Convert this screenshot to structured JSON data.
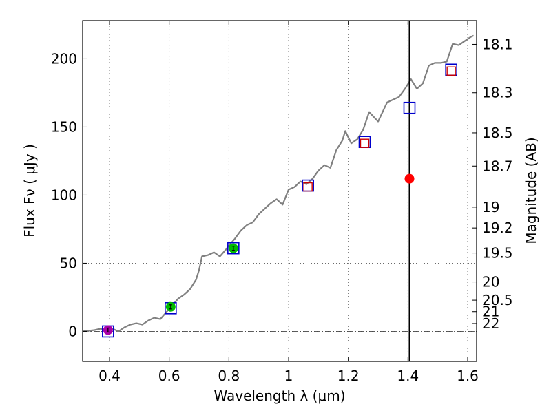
{
  "chart_data": {
    "type": "scatter",
    "xlabel": "Wavelength  λ (μm)",
    "ylabel": "Flux  Fν  ( μJy )",
    "y2label": "Magnitude (AB)",
    "xlim": [
      0.31,
      1.63
    ],
    "ylim": [
      -22,
      228
    ],
    "grid": true,
    "xticks": [
      {
        "value": 0.4,
        "label": "0.4"
      },
      {
        "value": 0.6,
        "label": "0.6"
      },
      {
        "value": 0.8,
        "label": "0.8"
      },
      {
        "value": 1.0,
        "label": "1"
      },
      {
        "value": 1.2,
        "label": "1.2"
      },
      {
        "value": 1.4,
        "label": "1.4"
      },
      {
        "value": 1.6,
        "label": "1.6"
      }
    ],
    "yticks": [
      {
        "value": 0,
        "label": "0"
      },
      {
        "value": 50,
        "label": "50"
      },
      {
        "value": 100,
        "label": "100"
      },
      {
        "value": 150,
        "label": "150"
      },
      {
        "value": 200,
        "label": "200"
      }
    ],
    "magnitude_ticks": [
      {
        "label": "18.1",
        "flux": 210.6
      },
      {
        "label": "18.3",
        "flux": 175.1
      },
      {
        "label": "18.5",
        "flux": 145.7
      },
      {
        "label": "18.7",
        "flux": 121.3
      },
      {
        "label": "19",
        "flux": 91.2
      },
      {
        "label": "19.2",
        "flux": 75.9
      },
      {
        "label": "19.5",
        "flux": 57.5
      },
      {
        "label": "20",
        "flux": 36.3
      },
      {
        "label": "20.5",
        "flux": 22.9
      },
      {
        "label": "21",
        "flux": 14.5
      },
      {
        "label": "22",
        "flux": 5.8
      }
    ],
    "series": [
      {
        "name": "template_spectrum",
        "style": "line",
        "color": "#808080",
        "x": [
          0.31,
          0.35,
          0.37,
          0.39,
          0.41,
          0.43,
          0.45,
          0.47,
          0.49,
          0.51,
          0.53,
          0.55,
          0.57,
          0.59,
          0.61,
          0.63,
          0.65,
          0.67,
          0.69,
          0.7,
          0.71,
          0.73,
          0.75,
          0.77,
          0.79,
          0.8,
          0.82,
          0.84,
          0.86,
          0.88,
          0.9,
          0.92,
          0.94,
          0.96,
          0.98,
          1.0,
          1.02,
          1.04,
          1.06,
          1.08,
          1.1,
          1.12,
          1.14,
          1.16,
          1.18,
          1.19,
          1.21,
          1.23,
          1.25,
          1.27,
          1.3,
          1.33,
          1.35,
          1.37,
          1.39,
          1.41,
          1.43,
          1.45,
          1.47,
          1.49,
          1.51,
          1.53,
          1.55,
          1.57,
          1.59,
          1.61,
          1.62
        ],
        "y": [
          0,
          1,
          2,
          1,
          2,
          0,
          3,
          5,
          6,
          5,
          8,
          10,
          9,
          14,
          19,
          24,
          27,
          31,
          38,
          45,
          55,
          56,
          58,
          55,
          60,
          63,
          68,
          74,
          78,
          80,
          86,
          90,
          94,
          97,
          93,
          104,
          106,
          110,
          108,
          112,
          118,
          122,
          120,
          133,
          140,
          147,
          138,
          141,
          148,
          161,
          154,
          168,
          170,
          172,
          178,
          185,
          178,
          182,
          195,
          197,
          197,
          198,
          211,
          210,
          213,
          216,
          217
        ]
      },
      {
        "name": "model_fluxes",
        "style": "open-square",
        "color": "#0000cc",
        "x": [
          0.395,
          0.605,
          0.815,
          1.065,
          1.255,
          1.405,
          1.545
        ],
        "y": [
          0,
          17,
          61,
          107,
          139,
          164,
          192
        ]
      },
      {
        "name": "observed_upper_limits",
        "style": "open-square-small",
        "color": "#cc0000",
        "x": [
          1.065,
          1.255,
          1.545
        ],
        "y": [
          106,
          138,
          191
        ]
      },
      {
        "name": "observed_u",
        "style": "filled-circle",
        "color": "#aa00aa",
        "x": [
          0.395
        ],
        "y": [
          1
        ]
      },
      {
        "name": "observed_gri",
        "style": "filled-circle",
        "color": "#00bb00",
        "x": [
          0.605,
          0.815
        ],
        "y": [
          18,
          61
        ]
      },
      {
        "name": "observed_highlight",
        "style": "filled-circle",
        "color": "#ff0000",
        "x": [
          1.405
        ],
        "y": [
          112
        ]
      }
    ],
    "vertical_line": {
      "x": 1.405,
      "color": "#000000"
    },
    "zero_line": {
      "y": 0
    }
  }
}
